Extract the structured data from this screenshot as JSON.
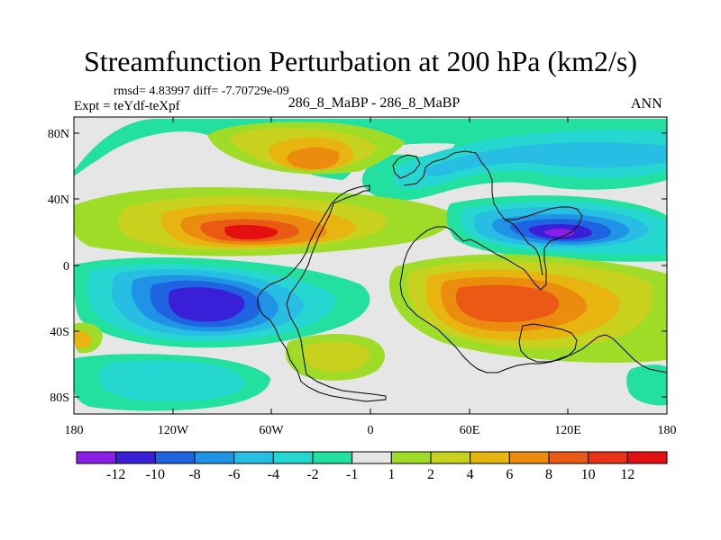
{
  "title": "Streamfunction Perturbation at 200 hPa (km2/s)",
  "stats": "rmsd= 4.83997 diff= -7.70729e-09",
  "expt": "Expt = teYdf-teXpf",
  "case_label": "286_8_MaBP - 286_8_MaBP",
  "season": "ANN",
  "map": {
    "lat_labels": [
      "80N",
      "40N",
      "0",
      "40S",
      "80S"
    ],
    "lon_labels": [
      "180",
      "120W",
      "60W",
      "0",
      "60E",
      "120E",
      "180"
    ]
  },
  "colorbar": {
    "labels": [
      "-12",
      "-10",
      "-8",
      "-6",
      "-4",
      "-2",
      "-1",
      "1",
      "2",
      "4",
      "6",
      "8",
      "10",
      "12"
    ],
    "colors": [
      "#8a1ee6",
      "#3a1fd9",
      "#1e64e0",
      "#1f94e6",
      "#28bde2",
      "#26d6d1",
      "#22e09f",
      "#e6e6e6",
      "#9fdc28",
      "#c8d21e",
      "#e8b40f",
      "#ec8c0f",
      "#ea5a14",
      "#e83214",
      "#e41010"
    ]
  },
  "colors": {
    "background_field": "#e6e6e6",
    "coastline": "#000000"
  }
}
